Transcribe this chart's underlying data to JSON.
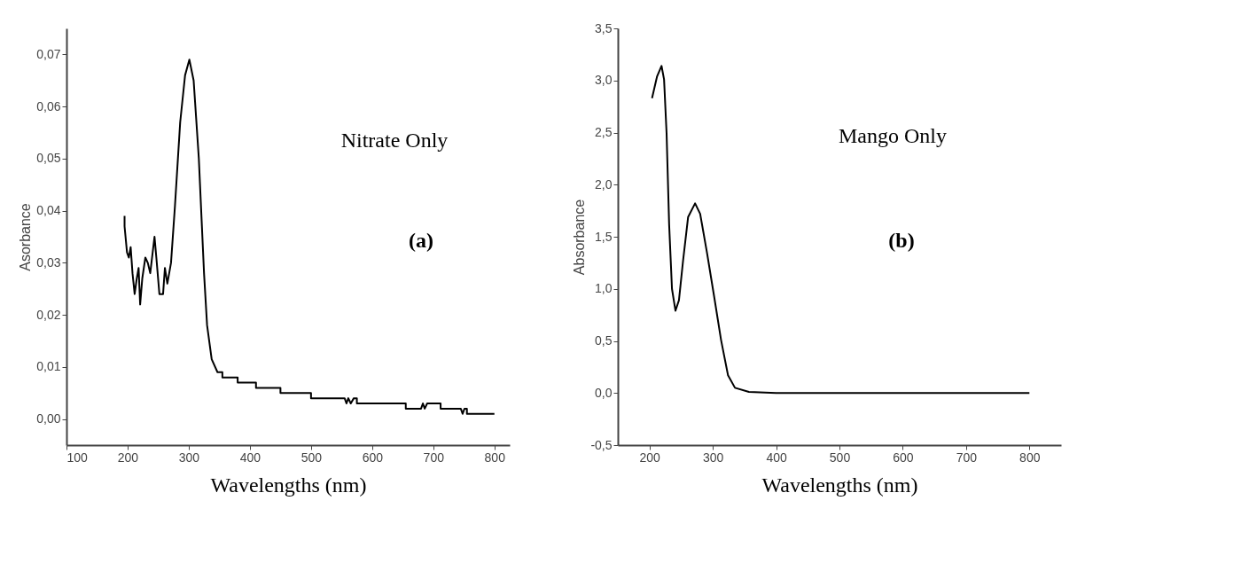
{
  "chart_data": [
    {
      "type": "line",
      "xlabel": "Wavelengths (nm)",
      "ylabel": "Asorbance",
      "grid": false,
      "xlim": [
        100,
        825
      ],
      "xticks": [
        100,
        200,
        300,
        400,
        500,
        600,
        700,
        800
      ],
      "ylim": [
        -0.005,
        0.075
      ],
      "yticks": [
        {
          "value": 0,
          "label": "0,00"
        },
        {
          "value": 0.01,
          "label": "0,01"
        },
        {
          "value": 0.02,
          "label": "0,02"
        },
        {
          "value": 0.03,
          "label": "0,03"
        },
        {
          "value": 0.04,
          "label": "0,04"
        },
        {
          "value": 0.05,
          "label": "0,05"
        },
        {
          "value": 0.06,
          "label": "0,06"
        },
        {
          "value": 0.07,
          "label": "0,07"
        }
      ],
      "annotations": [
        "Nitrate Only",
        "(a)"
      ],
      "series": [
        {
          "color": "#000000",
          "x": [
            195,
            195,
            199,
            202,
            205,
            208,
            211.5,
            215,
            218,
            220.5,
            224,
            229,
            233,
            237,
            241,
            244,
            247,
            252,
            258,
            261,
            265,
            271,
            277.5,
            286,
            294,
            301,
            308,
            316.5,
            325,
            330,
            337.5,
            347,
            355,
            355,
            380,
            380,
            410,
            410,
            450,
            450,
            500,
            500,
            555,
            558,
            561,
            565,
            570,
            575,
            575,
            655,
            655,
            680,
            683,
            686,
            690,
            695,
            700,
            712,
            712,
            745,
            748,
            751,
            755,
            755,
            800
          ],
          "values": [
            0.039,
            0.037,
            0.032,
            0.031,
            0.033,
            0.028,
            0.024,
            0.027,
            0.029,
            0.022,
            0.027,
            0.031,
            0.03,
            0.028,
            0.032,
            0.035,
            0.031,
            0.024,
            0.024,
            0.029,
            0.026,
            0.03,
            0.041,
            0.057,
            0.066,
            0.069,
            0.065,
            0.05,
            0.028,
            0.018,
            0.0115,
            0.009,
            0.009,
            0.008,
            0.008,
            0.007,
            0.007,
            0.006,
            0.006,
            0.005,
            0.005,
            0.004,
            0.004,
            0.003,
            0.004,
            0.003,
            0.004,
            0.004,
            0.003,
            0.003,
            0.002,
            0.002,
            0.003,
            0.002,
            0.003,
            0.003,
            0.003,
            0.003,
            0.002,
            0.002,
            0.001,
            0.002,
            0.002,
            0.001,
            0.001
          ]
        }
      ]
    },
    {
      "type": "line",
      "xlabel": "Wavelengths (nm)",
      "ylabel": "Absorbance",
      "grid": false,
      "xlim": [
        150,
        850
      ],
      "xticks": [
        200,
        300,
        400,
        500,
        600,
        700,
        800
      ],
      "ylim": [
        -0.5,
        3.5
      ],
      "yticks": [
        {
          "value": -0.5,
          "label": "-0,5"
        },
        {
          "value": 0,
          "label": "0,0"
        },
        {
          "value": 0.5,
          "label": "0,5"
        },
        {
          "value": 1,
          "label": "1,0"
        },
        {
          "value": 1.5,
          "label": "1,5"
        },
        {
          "value": 2,
          "label": "2,0"
        },
        {
          "value": 2.5,
          "label": "2,5"
        },
        {
          "value": 3,
          "label": "3,0"
        },
        {
          "value": 3.5,
          "label": "3,5"
        }
      ],
      "annotations": [
        "Mango Only",
        "(b)"
      ],
      "series": [
        {
          "color": "#000000",
          "x": [
            204,
            212,
            219,
            223,
            227,
            231,
            235.5,
            241,
            246.5,
            253,
            261,
            272,
            280,
            291,
            302,
            313,
            324,
            335,
            357,
            400,
            450,
            600,
            800
          ],
          "values": [
            2.83,
            3.04,
            3.14,
            3.01,
            2.49,
            1.62,
            1.0,
            0.79,
            0.89,
            1.27,
            1.69,
            1.82,
            1.72,
            1.34,
            0.93,
            0.51,
            0.17,
            0.05,
            0.01,
            0.0,
            0.0,
            0.0,
            0.0
          ]
        }
      ]
    }
  ]
}
